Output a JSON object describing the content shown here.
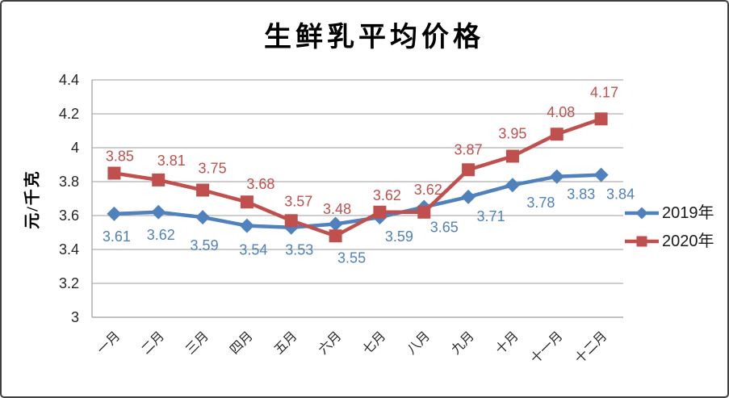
{
  "chart_data": {
    "type": "line",
    "title": "生鲜乳平均价格",
    "y_axis_title": "元/千克",
    "categories": [
      "一月",
      "二月",
      "三月",
      "四月",
      "五月",
      "六月",
      "七月",
      "八月",
      "九月",
      "十月",
      "十一月",
      "十二月"
    ],
    "series": [
      {
        "name": "2019年",
        "color": "#4F81BD",
        "marker": "diamond",
        "values": [
          3.61,
          3.62,
          3.59,
          3.54,
          3.53,
          3.55,
          3.59,
          3.65,
          3.71,
          3.78,
          3.83,
          3.84
        ]
      },
      {
        "name": "2020年",
        "color": "#C0504D",
        "marker": "square",
        "values": [
          3.85,
          3.81,
          3.75,
          3.68,
          3.57,
          3.48,
          3.62,
          3.62,
          3.87,
          3.95,
          4.08,
          4.17
        ]
      }
    ],
    "ylim": [
      3,
      4.4
    ],
    "y_tick_step": 0.2,
    "y_tick_labels": [
      "3",
      "3.2",
      "3.4",
      "3.6",
      "3.8",
      "4",
      "4.2",
      "4.4"
    ],
    "grid": true,
    "data_labels": true,
    "legend_position": "right",
    "colors": {
      "gridline": "#9c9c9c",
      "axis": "#9c9c9c",
      "tick_text": "#262626",
      "legend_text": "#1a1a1a"
    }
  }
}
